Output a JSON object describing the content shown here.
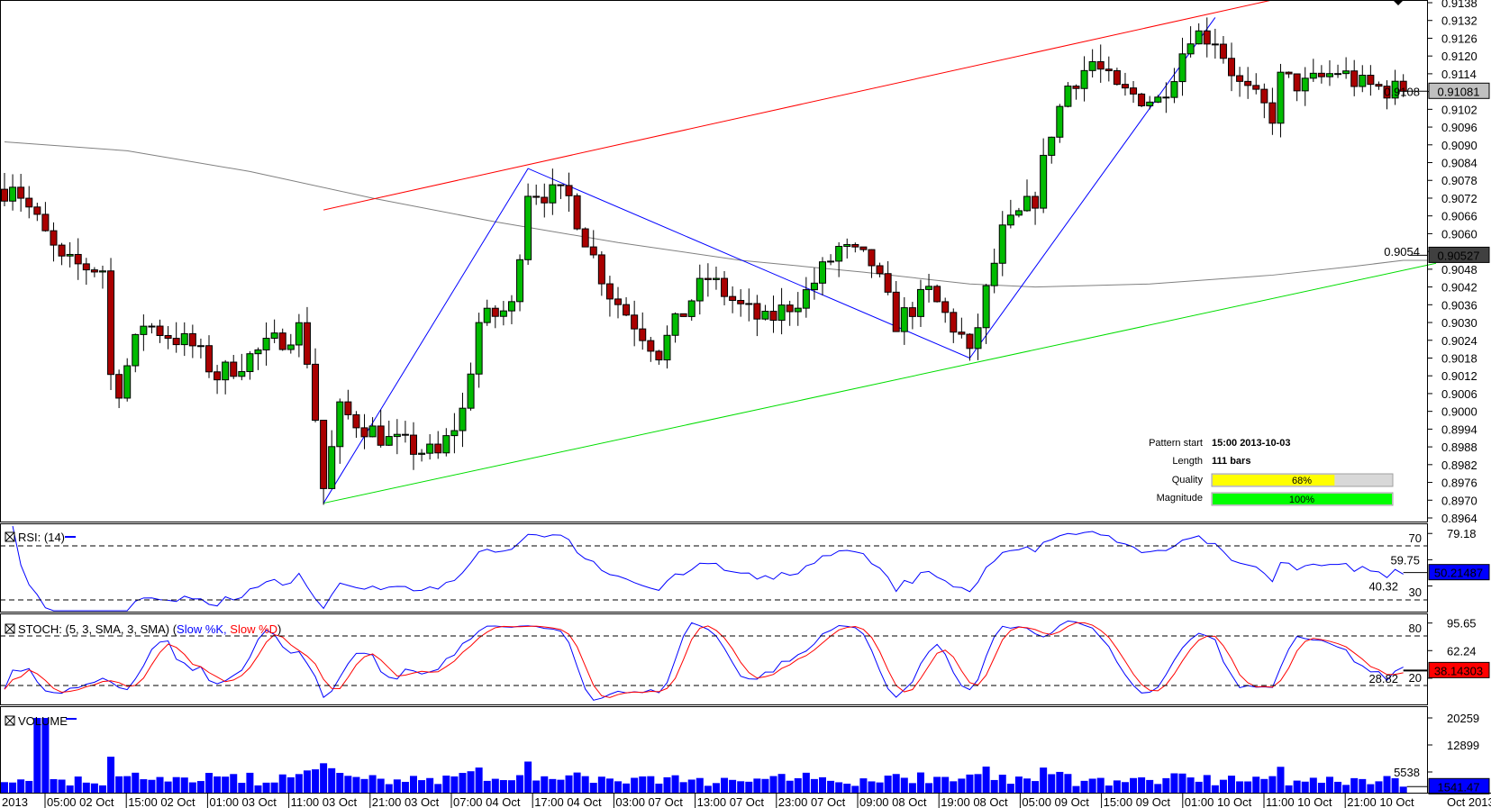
{
  "chart_data": {
    "type": "candlestick",
    "title": "",
    "price_axis": {
      "ticks": [
        "0.9138",
        "0.9132",
        "0.9126",
        "0.9120",
        "0.9114",
        "0.9108",
        "0.9102",
        "0.9096",
        "0.9090",
        "0.9084",
        "0.9078",
        "0.9072",
        "0.9066",
        "0.9060",
        "0.9054",
        "0.9048",
        "0.9042",
        "0.9036",
        "0.9030",
        "0.9024",
        "0.9018",
        "0.9012",
        "0.9006",
        "0.9000",
        "0.8994",
        "0.8988",
        "0.8982",
        "0.8976",
        "0.8970",
        "0.8964"
      ],
      "range": [
        0.8964,
        0.9138
      ]
    },
    "bars": 175,
    "price_path": [
      [
        0,
        0.9075
      ],
      [
        1,
        0.9078
      ],
      [
        7,
        0.905
      ],
      [
        12,
        0.9048
      ],
      [
        13,
        0.9012
      ],
      [
        14,
        0.9008
      ],
      [
        17,
        0.903
      ],
      [
        23,
        0.9022
      ],
      [
        26,
        0.9012
      ],
      [
        31,
        0.902
      ],
      [
        36,
        0.9028
      ],
      [
        37,
        0.9018
      ],
      [
        38,
        0.8998
      ],
      [
        39,
        0.8974
      ],
      [
        41,
        0.9
      ],
      [
        47,
        0.899
      ],
      [
        53,
        0.8985
      ],
      [
        56,
        0.9
      ],
      [
        58,
        0.903
      ],
      [
        62,
        0.9035
      ],
      [
        64,
        0.9075
      ],
      [
        69,
        0.9072
      ],
      [
        72,
        0.9052
      ],
      [
        74,
        0.904
      ],
      [
        80,
        0.902
      ],
      [
        84,
        0.9038
      ],
      [
        86,
        0.9045
      ],
      [
        90,
        0.9035
      ],
      [
        93,
        0.903
      ],
      [
        98,
        0.904
      ],
      [
        102,
        0.9055
      ],
      [
        106,
        0.905
      ],
      [
        109,
        0.903
      ],
      [
        113,
        0.904
      ],
      [
        117,
        0.9025
      ],
      [
        118,
        0.9018
      ],
      [
        120,
        0.904
      ],
      [
        122,
        0.906
      ],
      [
        126,
        0.9072
      ],
      [
        128,
        0.9095
      ],
      [
        130,
        0.911
      ],
      [
        133,
        0.9118
      ],
      [
        136,
        0.9108
      ],
      [
        141,
        0.9105
      ],
      [
        143,
        0.9115
      ],
      [
        145,
        0.9128
      ],
      [
        148,
        0.9126
      ],
      [
        151,
        0.911
      ],
      [
        155,
        0.91
      ],
      [
        156,
        0.9112
      ],
      [
        159,
        0.911
      ],
      [
        163,
        0.9115
      ],
      [
        166,
        0.911
      ],
      [
        171,
        0.91081
      ]
    ],
    "moving_average": {
      "color": "#808080",
      "last": "0.90527",
      "points": [
        [
          0,
          0.9091
        ],
        [
          15,
          0.9088
        ],
        [
          30,
          0.9081
        ],
        [
          45,
          0.9072
        ],
        [
          60,
          0.9064
        ],
        [
          75,
          0.9057
        ],
        [
          90,
          0.9051
        ],
        [
          105,
          0.9047
        ],
        [
          118,
          0.9043
        ],
        [
          126,
          0.9042
        ],
        [
          140,
          0.9043
        ],
        [
          155,
          0.9046
        ],
        [
          165,
          0.9049
        ],
        [
          171,
          0.9051
        ],
        [
          174,
          0.9051
        ]
      ]
    },
    "trendlines": {
      "resistance": {
        "color": "#ff0000",
        "points": [
          [
            39,
            0.9068
          ],
          [
            160,
            0.9142
          ]
        ]
      },
      "support": {
        "color": "#00dd00",
        "points": [
          [
            39,
            0.8969
          ],
          [
            175,
            0.905
          ]
        ]
      },
      "zigzag": {
        "color": "#0000ff",
        "points": [
          [
            39,
            0.8969
          ],
          [
            64,
            0.9082
          ],
          [
            118,
            0.9018
          ],
          [
            148,
            0.9133
          ]
        ]
      }
    },
    "last_price": "0.91081",
    "time_labels": [
      "2013",
      "05:00 02 Oct",
      "15:00 02 Oct",
      "01:00 03 Oct",
      "11:00 03 Oct",
      "21:00 03 Oct",
      "07:00 04 Oct",
      "17:00 04 Oct",
      "03:00 07 Oct",
      "13:00 07 Oct",
      "23:00 07 Oct",
      "09:00 08 Oct",
      "19:00 08 Oct",
      "05:00 09 Oct",
      "15:00 09 Oct",
      "01:00 10 Oct",
      "11:00 10 Oct",
      "21:00 10 Oct",
      "Oct 2013"
    ],
    "colors": {
      "up": "#00bb00",
      "down": "#aa0000",
      "rsi": "#0000ff",
      "k": "#0000ff",
      "d": "#ff0000",
      "volume": "#0000ff"
    }
  },
  "pattern_info": {
    "pattern_start_label": "Pattern start",
    "pattern_start": "15:00 2013-10-03",
    "length_label": "Length",
    "length": "111 bars",
    "quality_label": "Quality",
    "quality": "68%",
    "quality_value": 68,
    "magnitude_label": "Magnitude",
    "magnitude": "100%",
    "magnitude_value": 100
  },
  "rsi": {
    "title": "RSI: (14)",
    "levels": [
      "70",
      "30"
    ],
    "ticks": [
      "79.18",
      "59.75",
      "40.32"
    ],
    "last": "50.21487"
  },
  "stoch": {
    "title": "STOCH: (5, 3, SMA, 3, SMA)",
    "k_label": "Slow %K,",
    "d_label": "Slow %D",
    "levels": [
      "80",
      "20"
    ],
    "ticks": [
      "95.65",
      "62.24",
      "28.82"
    ],
    "last": "38.14303"
  },
  "volume": {
    "title": "VOLUME",
    "ticks": [
      "20259",
      "12899",
      "5538"
    ],
    "last": "1541.47"
  }
}
